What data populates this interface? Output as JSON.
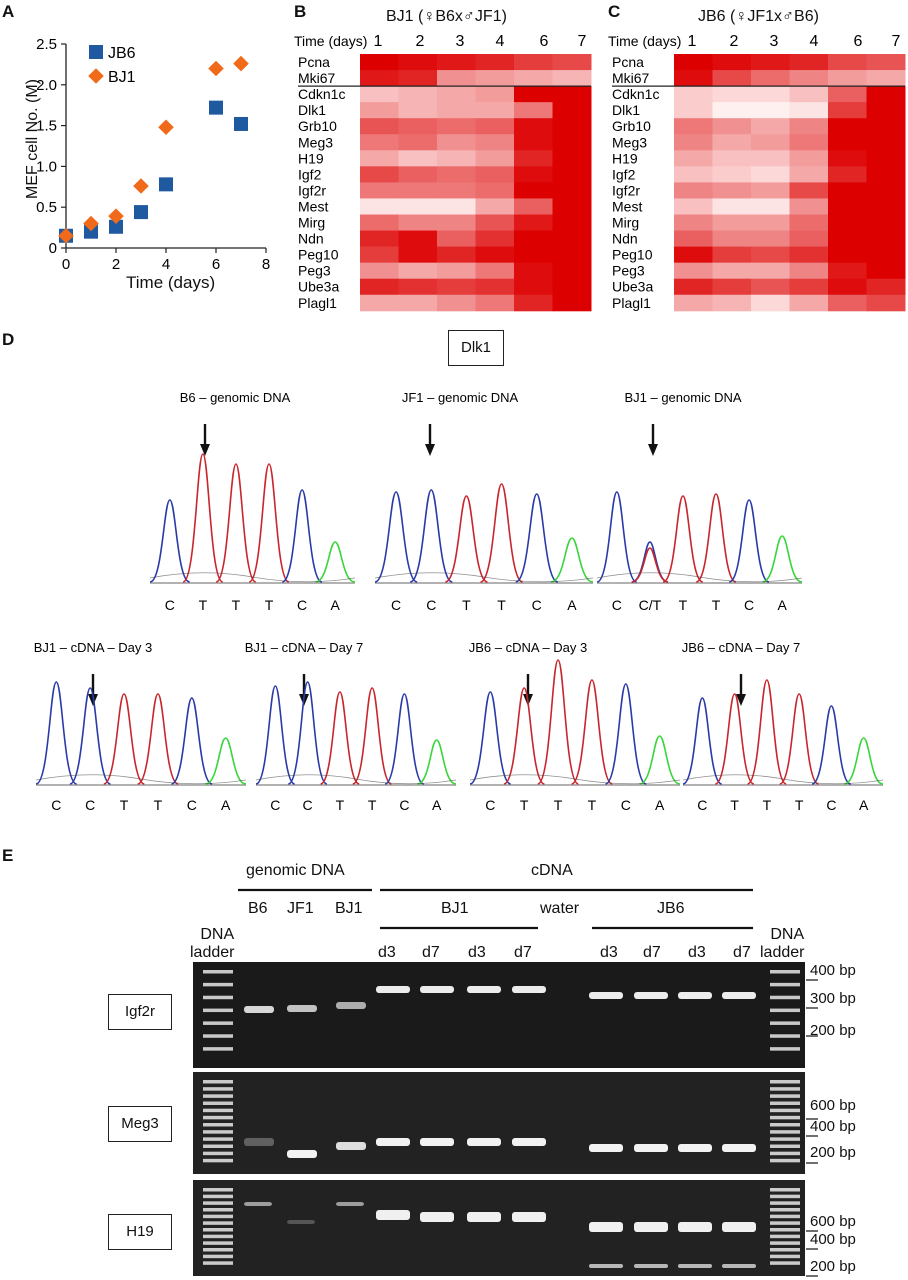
{
  "panels": {
    "a": "A",
    "b": "B",
    "c": "C",
    "d": "D",
    "e": "E"
  },
  "chart_data": {
    "type": "scatter",
    "xlabel": "Time (days)",
    "ylabel": "MEF cell No. (M)",
    "xlim": [
      0,
      8
    ],
    "ylim": [
      0,
      2.5
    ],
    "x_ticks": [
      "0",
      "2",
      "4",
      "6",
      "8"
    ],
    "y_ticks": [
      "0",
      "0.5",
      "1.0",
      "1.5",
      "2.0",
      "2.5"
    ],
    "legend_position": "top-left",
    "series": [
      {
        "name": "JB6",
        "marker": "square",
        "color": "#1f5aa0",
        "x": [
          0,
          1,
          2,
          3,
          4,
          6,
          7
        ],
        "y": [
          0.15,
          0.2,
          0.26,
          0.44,
          0.78,
          1.72,
          1.52
        ]
      },
      {
        "name": "BJ1",
        "marker": "diamond",
        "color": "#f06a1a",
        "x": [
          0,
          1,
          2,
          3,
          4,
          6,
          7
        ],
        "y": [
          0.15,
          0.3,
          0.39,
          0.76,
          1.48,
          2.2,
          2.26
        ]
      }
    ]
  },
  "heatmaps": {
    "time_label": "Time (days)",
    "days": [
      "1",
      "2",
      "3",
      "4",
      "6",
      "7"
    ],
    "genes": [
      "Pcna",
      "Mki67",
      "Cdkn1c",
      "Dlk1",
      "Grb10",
      "Meg3",
      "H19",
      "Igf2",
      "Igf2r",
      "Mest",
      "Mirg",
      "Ndn",
      "Peg10",
      "Peg3",
      "Ube3a",
      "Plagl1"
    ],
    "bj1": {
      "title": "BJ1 (♀B6x♂JF1)",
      "values": [
        [
          1.0,
          0.95,
          0.9,
          0.85,
          0.75,
          0.7
        ],
        [
          0.9,
          0.85,
          0.4,
          0.35,
          0.3,
          0.25
        ],
        [
          0.2,
          0.25,
          0.3,
          0.35,
          1.0,
          1.0
        ],
        [
          0.35,
          0.25,
          0.3,
          0.3,
          0.5,
          1.0
        ],
        [
          0.65,
          0.6,
          0.55,
          0.6,
          0.95,
          1.0
        ],
        [
          0.5,
          0.55,
          0.4,
          0.45,
          0.95,
          1.0
        ],
        [
          0.3,
          0.2,
          0.25,
          0.35,
          0.85,
          1.0
        ],
        [
          0.7,
          0.6,
          0.55,
          0.6,
          0.95,
          1.0
        ],
        [
          0.5,
          0.5,
          0.5,
          0.55,
          1.0,
          1.0
        ],
        [
          0.05,
          0.05,
          0.05,
          0.3,
          0.6,
          1.0
        ],
        [
          0.55,
          0.45,
          0.45,
          0.65,
          0.9,
          1.0
        ],
        [
          0.85,
          0.95,
          0.6,
          0.8,
          1.0,
          1.0
        ],
        [
          0.75,
          0.95,
          0.85,
          0.95,
          1.0,
          1.0
        ],
        [
          0.4,
          0.3,
          0.35,
          0.5,
          0.95,
          1.0
        ],
        [
          0.85,
          0.8,
          0.75,
          0.8,
          0.95,
          1.0
        ],
        [
          0.3,
          0.3,
          0.4,
          0.5,
          0.85,
          1.0
        ]
      ]
    },
    "jb6": {
      "title": "JB6 (♀JF1x♂B6)",
      "values": [
        [
          1.0,
          0.95,
          0.9,
          0.85,
          0.7,
          0.65
        ],
        [
          0.95,
          0.7,
          0.55,
          0.45,
          0.35,
          0.3
        ],
        [
          0.15,
          0.1,
          0.1,
          0.2,
          0.6,
          1.0
        ],
        [
          0.15,
          0.0,
          0.0,
          0.05,
          0.75,
          1.0
        ],
        [
          0.5,
          0.4,
          0.3,
          0.45,
          1.0,
          1.0
        ],
        [
          0.45,
          0.3,
          0.35,
          0.5,
          1.0,
          1.0
        ],
        [
          0.3,
          0.2,
          0.2,
          0.35,
          0.95,
          1.0
        ],
        [
          0.2,
          0.15,
          0.1,
          0.3,
          0.85,
          1.0
        ],
        [
          0.45,
          0.4,
          0.35,
          0.7,
          1.0,
          1.0
        ],
        [
          0.2,
          0.05,
          0.05,
          0.4,
          1.0,
          1.0
        ],
        [
          0.45,
          0.35,
          0.35,
          0.55,
          1.0,
          1.0
        ],
        [
          0.6,
          0.45,
          0.45,
          0.6,
          1.0,
          1.0
        ],
        [
          0.95,
          0.75,
          0.7,
          0.8,
          1.0,
          1.0
        ],
        [
          0.4,
          0.3,
          0.3,
          0.45,
          0.9,
          1.0
        ],
        [
          0.85,
          0.75,
          0.65,
          0.75,
          0.95,
          0.85
        ],
        [
          0.3,
          0.25,
          0.1,
          0.3,
          0.6,
          0.7
        ]
      ]
    }
  },
  "panel_d": {
    "gene_label": "Dlk1",
    "traces": [
      {
        "label": "B6 – genomic DNA",
        "bases": [
          "C",
          "T",
          "T",
          "T",
          "C",
          "A"
        ]
      },
      {
        "label": "JF1 – genomic DNA",
        "bases": [
          "C",
          "C",
          "T",
          "T",
          "C",
          "A"
        ]
      },
      {
        "label": "BJ1 – genomic DNA",
        "bases": [
          "C",
          "C/T",
          "T",
          "T",
          "C",
          "A"
        ]
      },
      {
        "label": "BJ1 – cDNA – Day 3",
        "bases": [
          "C",
          "C",
          "T",
          "T",
          "C",
          "A"
        ]
      },
      {
        "label": "BJ1 – cDNA – Day 7",
        "bases": [
          "C",
          "C",
          "T",
          "T",
          "C",
          "A"
        ]
      },
      {
        "label": "JB6 – cDNA – Day 3",
        "bases": [
          "C",
          "T",
          "T",
          "T",
          "C",
          "A"
        ]
      },
      {
        "label": "JB6 – cDNA – Day 7",
        "bases": [
          "C",
          "T",
          "T",
          "T",
          "C",
          "A"
        ]
      }
    ]
  },
  "panel_e": {
    "genomic_label": "genomic DNA",
    "cdna_label": "cDNA",
    "lane_genomic": [
      "B6",
      "JF1",
      "BJ1"
    ],
    "group_bj1": "BJ1",
    "group_jb6": "JB6",
    "water_label": "water",
    "lanes_bj1": [
      "d3",
      "d7",
      "d3",
      "d7"
    ],
    "lanes_jb6": [
      "d3",
      "d7",
      "d3",
      "d7"
    ],
    "ladder_label_1": "DNA",
    "ladder_label_2": "ladder",
    "gels": [
      {
        "name": "Igf2r",
        "markers": [
          "400 bp",
          "300 bp",
          "200 bp"
        ]
      },
      {
        "name": "Meg3",
        "markers": [
          "600 bp",
          "400 bp",
          "200 bp"
        ]
      },
      {
        "name": "H19",
        "markers": [
          "600 bp",
          "400 bp",
          "200 bp"
        ]
      }
    ]
  }
}
